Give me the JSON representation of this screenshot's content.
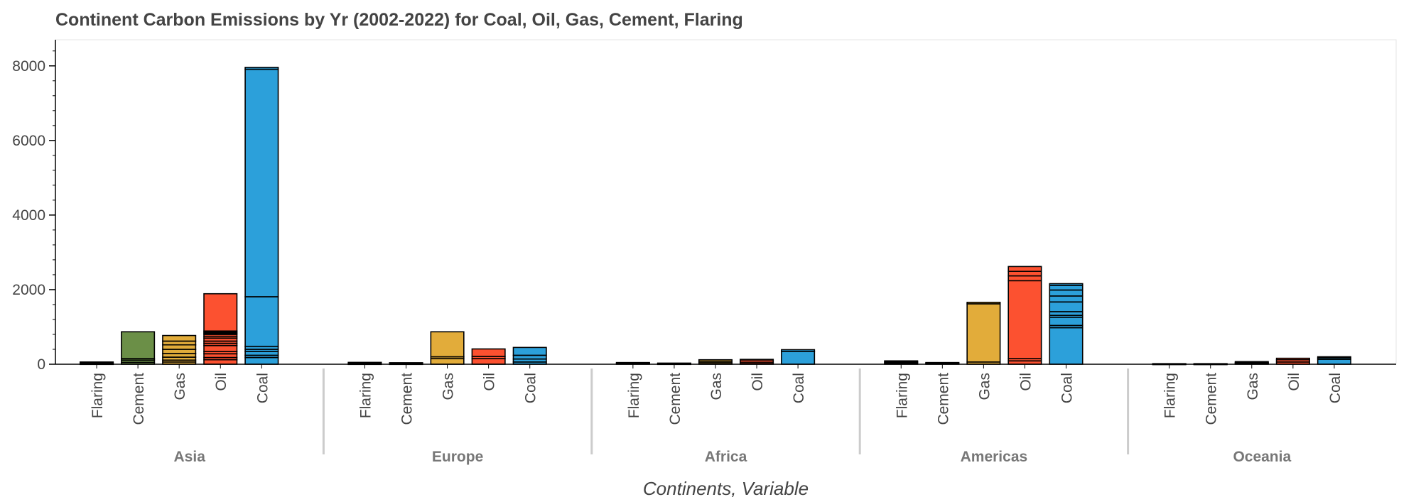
{
  "title": "Continent Carbon Emissions by Yr (2002-2022) for Coal, Oil, Gas, Cement, Flaring",
  "colors": {
    "Coal": "#2ca0da",
    "Oil": "#fc5130",
    "Gas": "#e2ac3a",
    "Cement": "#6b8f47",
    "Flaring": "#9aa6b5",
    "outline": "#000000",
    "separator": "#cccccc",
    "frame": "#e5e5e5"
  },
  "chart_data": {
    "type": "bar",
    "stacked": true,
    "title": "Continent Carbon Emissions by Yr (2002-2022) for Coal, Oil, Gas, Cement, Flaring",
    "xlabel": "Continents, Variable",
    "ylabel": "",
    "ylim": [
      0,
      8700
    ],
    "yticks": [
      0,
      2000,
      4000,
      6000,
      8000
    ],
    "groups": [
      "Asia",
      "Europe",
      "Africa",
      "Americas",
      "Oceania"
    ],
    "variables": [
      "Flaring",
      "Cement",
      "Gas",
      "Oil",
      "Coal"
    ],
    "series": {
      "Asia": {
        "Flaring": [
          10,
          15,
          20,
          15
        ],
        "Cement": [
          50,
          60,
          40,
          720
        ],
        "Gas": [
          60,
          50,
          80,
          100,
          110,
          120,
          100,
          150
        ],
        "Oil": [
          120,
          60,
          100,
          60,
          160,
          60,
          60,
          80,
          50,
          50,
          30,
          30,
          30,
          1000
        ],
        "Coal": [
          180,
          60,
          100,
          60,
          80,
          1330,
          6100,
          50
        ]
      },
      "Europe": {
        "Flaring": [
          10,
          10,
          15,
          15
        ],
        "Cement": [
          10,
          10,
          10,
          10
        ],
        "Gas": [
          150,
          50,
          670
        ],
        "Oil": [
          150,
          60,
          200
        ],
        "Coal": [
          60,
          80,
          100,
          210
        ]
      },
      "Africa": {
        "Flaring": [
          15,
          15,
          15
        ],
        "Cement": [
          10,
          10,
          10
        ],
        "Gas": [
          40,
          40,
          40
        ],
        "Oil": [
          40,
          50,
          40
        ],
        "Coal": [
          340,
          50
        ]
      },
      "Americas": {
        "Flaring": [
          30,
          30,
          30
        ],
        "Cement": [
          15,
          15,
          15
        ],
        "Gas": [
          60,
          1560,
          40
        ],
        "Oil": [
          90,
          60,
          2090,
          130,
          120,
          130
        ],
        "Coal": [
          980,
          60,
          220,
          50,
          100,
          260,
          160,
          160,
          120,
          50
        ]
      },
      "Oceania": {
        "Flaring": [
          5,
          5,
          5
        ],
        "Cement": [
          5,
          5,
          5
        ],
        "Gas": [
          20,
          20,
          30
        ],
        "Oil": [
          60,
          60,
          40
        ],
        "Coal": [
          130,
          40,
          30
        ]
      }
    }
  }
}
